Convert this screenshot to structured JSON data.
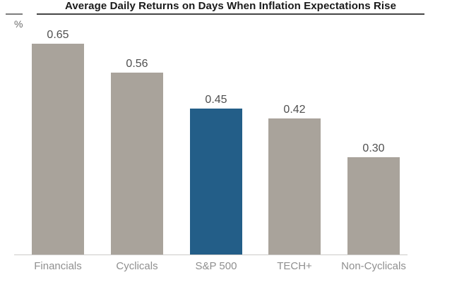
{
  "header": {
    "title": "Average Daily Returns on Days When Inflation Expectations Rise"
  },
  "chart_data": {
    "type": "bar",
    "title": "Average Daily Returns on Days When Inflation Expectations Rise",
    "xlabel": "",
    "ylabel": "%",
    "categories": [
      "Financials",
      "Cyclicals",
      "S&P 500",
      "TECH+",
      "Non-Cyclicals"
    ],
    "values": [
      0.65,
      0.56,
      0.45,
      0.42,
      0.3
    ],
    "value_labels": [
      "0.65",
      "0.56",
      "0.45",
      "0.42",
      "0.30"
    ],
    "highlight_category": "S&P 500",
    "highlight_index": 2,
    "colors": {
      "bar": "#a9a39b",
      "highlight_bar": "#235e88",
      "axis_line": "#cccbc9",
      "value_label": "#4f4f4f",
      "category_label": "#8f8f8f",
      "title": "#1a1a1a"
    },
    "ylim": [
      0,
      0.78
    ],
    "grid": false,
    "legend": "none"
  }
}
